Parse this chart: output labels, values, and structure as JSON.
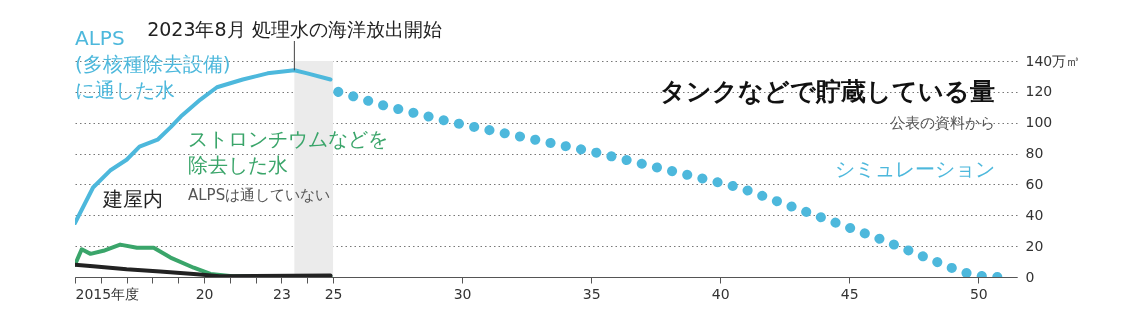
{
  "chart_data": {
    "type": "line",
    "title": "タンクなどで貯蔵している量",
    "xlim": [
      2015,
      2051.5
    ],
    "ylim": [
      0,
      140
    ],
    "xticks": [
      {
        "value": 2015,
        "label": "2015年度"
      },
      {
        "value": 2016,
        "label": null
      },
      {
        "value": 2017,
        "label": null
      },
      {
        "value": 2018,
        "label": null
      },
      {
        "value": 2019,
        "label": null
      },
      {
        "value": 2020,
        "label": "20"
      },
      {
        "value": 2021,
        "label": null
      },
      {
        "value": 2022,
        "label": null
      },
      {
        "value": 2023,
        "label": "23"
      },
      {
        "value": 2024,
        "label": null
      },
      {
        "value": 2025,
        "label": "25"
      },
      {
        "value": 2030,
        "label": "30"
      },
      {
        "value": 2035,
        "label": "35"
      },
      {
        "value": 2040,
        "label": "40"
      },
      {
        "value": 2045,
        "label": "45"
      },
      {
        "value": 2050,
        "label": "50"
      }
    ],
    "yticks": [
      0,
      20,
      40,
      60,
      80,
      100,
      120,
      {
        "value": 140,
        "label": "140万㎥"
      }
    ],
    "grid": "y",
    "legend": false,
    "marker": "none",
    "series": [
      {
        "name": "ALPS(多核種除去設備)に通した水",
        "color": "#4db8dc",
        "line_style": "solid",
        "x": [
          2015.0,
          2015.7,
          2016.36,
          2017.0,
          2017.5,
          2018.2,
          2018.7,
          2019.1,
          2019.86,
          2020.5,
          2021.5,
          2022.46,
          2023.5,
          2024.0,
          2024.9
        ],
        "values": [
          35,
          58,
          69,
          76,
          84.5,
          89,
          97,
          104,
          115,
          123,
          128,
          132,
          134,
          132,
          128
        ]
      },
      {
        "name": "ストロンチウムなどを除去した水",
        "color": "#3aa56a",
        "line_style": "solid",
        "x": [
          2015.0,
          2015.26,
          2015.6,
          2016.1,
          2016.75,
          2017.4,
          2018.05,
          2018.7,
          2019.6,
          2020.25,
          2021.1,
          2024.9
        ],
        "values": [
          8,
          18,
          15,
          17,
          21,
          19,
          19,
          12.6,
          6,
          2,
          0.5,
          0.5
        ]
      },
      {
        "name": "建屋内",
        "color": "#222222",
        "line_style": "solid",
        "x": [
          2015.0,
          2015.7,
          2017.0,
          2018.3,
          2019.6,
          2020.6,
          2024.9
        ],
        "values": [
          8,
          7,
          5,
          3.5,
          2,
          0.5,
          1
        ]
      },
      {
        "name": "シミュレーション",
        "color": "#4db8dc",
        "line_style": "dotted",
        "x": [
          2025.2,
          2027.0,
          2029.55,
          2035.1,
          2040.1,
          2040.8,
          2043.2,
          2046.2,
          2049.1,
          2049.7,
          2050.4,
          2051.0
        ],
        "values": [
          120,
          111,
          100.5,
          81,
          60.6,
          57.7,
          43,
          24.6,
          5,
          1.7,
          0,
          0
        ]
      }
    ],
    "bands": [
      {
        "axis": "x",
        "from": 2023.5,
        "to": 2025,
        "color": "#ebebeb"
      }
    ],
    "annotations": [
      {
        "text": "2023年8月 処理水の海洋放出開始",
        "x": 2023.5,
        "y": 134
      },
      "公表の資料から",
      "ALPSは通していない"
    ]
  }
}
